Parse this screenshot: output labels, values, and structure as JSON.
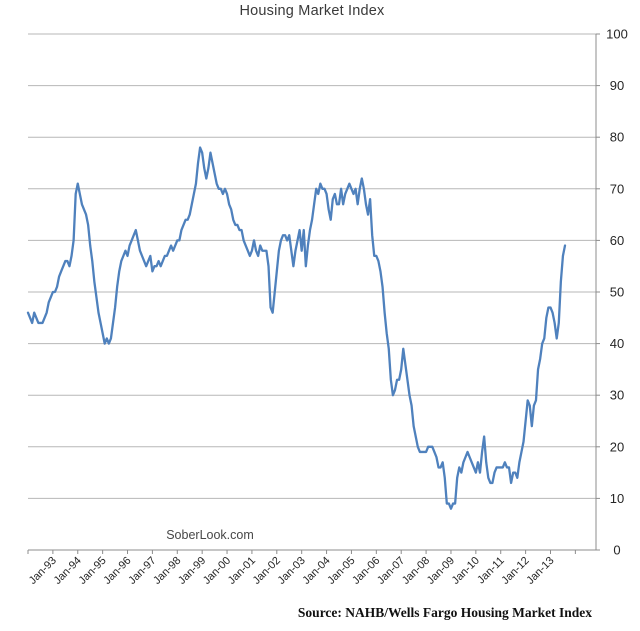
{
  "title": "Housing Market Index",
  "watermark": "SoberLook.com",
  "source_note": "Source: NAHB/Wells Fargo Housing Market Index",
  "chart_data": {
    "type": "line",
    "title": "Housing Market Index",
    "xlabel": "",
    "ylabel": "",
    "frequency": "monthly",
    "x_start": "Jan-1992",
    "x_end": "Aug-2013",
    "ylim": [
      0,
      100
    ],
    "y_ticks": [
      0,
      10,
      20,
      30,
      40,
      50,
      60,
      70,
      80,
      90,
      100
    ],
    "y_tick_side": "right",
    "grid": "horizontal",
    "legend": "none",
    "line_color": "#4F81BD",
    "gridline_color": "#b7b7b7",
    "axis_color": "#8c8c8c",
    "x_tick_labels": [
      "Jan-93",
      "Jan-94",
      "Jan-95",
      "Jan-96",
      "Jan-97",
      "Jan-98",
      "Jan-99",
      "Jan-00",
      "Jan-01",
      "Jan-02",
      "Jan-03",
      "Jan-04",
      "Jan-05",
      "Jan-06",
      "Jan-07",
      "Jan-08",
      "Jan-09",
      "Jan-10",
      "Jan-11",
      "Jan-12",
      "Jan-13"
    ],
    "series": [
      {
        "name": "NAHB/Wells Fargo Housing Market Index",
        "values": [
          46,
          45,
          44,
          46,
          45,
          44,
          44,
          44,
          45,
          46,
          48,
          49,
          50,
          50,
          51,
          53,
          54,
          55,
          56,
          56,
          55,
          57,
          60,
          69,
          71,
          69,
          67,
          66,
          65,
          63,
          59,
          56,
          52,
          49,
          46,
          44,
          42,
          40,
          41,
          40,
          41,
          44,
          47,
          51,
          54,
          56,
          57,
          58,
          57,
          59,
          60,
          61,
          62,
          60,
          58,
          57,
          56,
          55,
          56,
          57,
          54,
          55,
          55,
          56,
          55,
          56,
          57,
          57,
          58,
          59,
          58,
          59,
          60,
          60,
          62,
          63,
          64,
          64,
          65,
          67,
          69,
          71,
          75,
          78,
          77,
          74,
          72,
          74,
          77,
          75,
          73,
          71,
          70,
          70,
          69,
          70,
          69,
          67,
          66,
          64,
          63,
          63,
          62,
          62,
          60,
          59,
          58,
          57,
          58,
          60,
          58,
          57,
          59,
          58,
          58,
          58,
          55,
          47,
          46,
          50,
          54,
          58,
          60,
          61,
          61,
          60,
          61,
          58,
          55,
          58,
          60,
          62,
          58,
          62,
          55,
          59,
          62,
          64,
          67,
          70,
          69,
          71,
          70,
          70,
          69,
          66,
          64,
          68,
          69,
          67,
          67,
          70,
          67,
          69,
          70,
          71,
          70,
          69,
          70,
          67,
          70,
          72,
          70,
          67,
          65,
          68,
          61,
          57,
          57,
          56,
          54,
          51,
          46,
          42,
          39,
          33,
          30,
          31,
          33,
          33,
          35,
          39,
          36,
          33,
          30,
          28,
          24,
          22,
          20,
          19,
          19,
          19,
          19,
          20,
          20,
          20,
          19,
          18,
          16,
          16,
          17,
          14,
          9,
          9,
          8,
          9,
          9,
          14,
          16,
          15,
          17,
          18,
          19,
          18,
          17,
          16,
          15,
          17,
          15,
          19,
          22,
          17,
          14,
          13,
          13,
          15,
          16,
          16,
          16,
          16,
          17,
          16,
          16,
          13,
          15,
          15,
          14,
          17,
          19,
          21,
          25,
          29,
          28,
          24,
          28,
          29,
          35,
          37,
          40,
          41,
          45,
          47,
          47,
          46,
          44,
          41,
          44,
          52,
          57,
          59
        ]
      }
    ]
  }
}
